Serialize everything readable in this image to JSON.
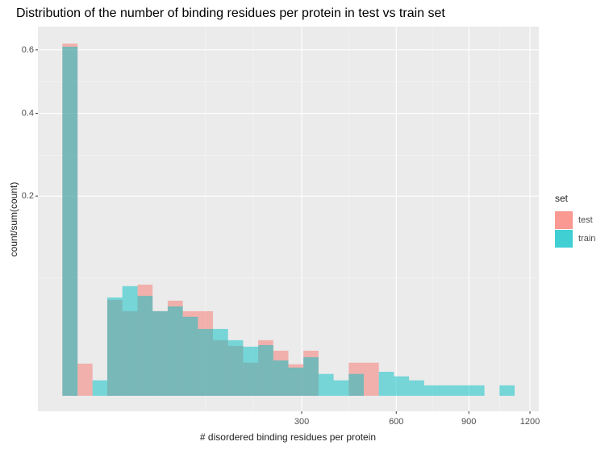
{
  "chart_data": {
    "type": "histogram",
    "title": "Distribution of the number of binding residues per protein in test vs train set",
    "x_label": "# disordered binding residues per protein",
    "y_label": "count/sum(count)",
    "legend_title": "set",
    "xscale": "sqrt",
    "yscale": "sqrt",
    "bins": [
      -0.7,
      0.1,
      2.1,
      6.6,
      13.8,
      23.7,
      36.1,
      51.2,
      68.9,
      89.2,
      112.1,
      137.6,
      165.8,
      196.6,
      230.0,
      266.0,
      304.6,
      345.9,
      389.8,
      436.3,
      485.4,
      537.1,
      591.5,
      648.4,
      708.0,
      770.2,
      835.0,
      902.5,
      972.6,
      1045.3,
      1120.6
    ],
    "series": [
      {
        "name": "test",
        "color": "#F8766D",
        "values": [
          0.622,
          0.0052,
          0,
          0.0461,
          0.0359,
          0.062,
          0.0359,
          0.0454,
          0.0359,
          0.0359,
          0.0155,
          0.0125,
          0.0055,
          0.0155,
          0.0102,
          0.005,
          0.0102,
          0,
          0,
          0.0055,
          0.0055,
          0,
          0,
          0,
          0,
          0,
          0,
          0,
          0,
          0
        ]
      },
      {
        "name": "train",
        "color": "#00BFC4",
        "values": [
          0.611,
          0,
          0.0012,
          0.0485,
          0.0603,
          0.0501,
          0.0359,
          0.0401,
          0.0313,
          0.0224,
          0.0224,
          0.0155,
          0.0121,
          0.0129,
          0.0063,
          0.004,
          0.0075,
          0.0024,
          0.0012,
          0.0024,
          0,
          0.0029,
          0.0019,
          0.0012,
          0.00055,
          0.00055,
          0.00055,
          0.00055,
          0,
          0.00055
        ]
      }
    ],
    "xlim": [
      -7.25,
      1246.9
    ],
    "ylim": [
      -0.0012,
      0.6834
    ],
    "xticks": [
      300,
      600,
      900,
      1200
    ],
    "yticks": [
      0.2,
      0.4,
      0.6
    ],
    "x_minor_grid": [
      100,
      186,
      437,
      742,
      1045
    ],
    "y_minor_grid": [
      0.07,
      0.29,
      0.495
    ],
    "grid": true
  }
}
